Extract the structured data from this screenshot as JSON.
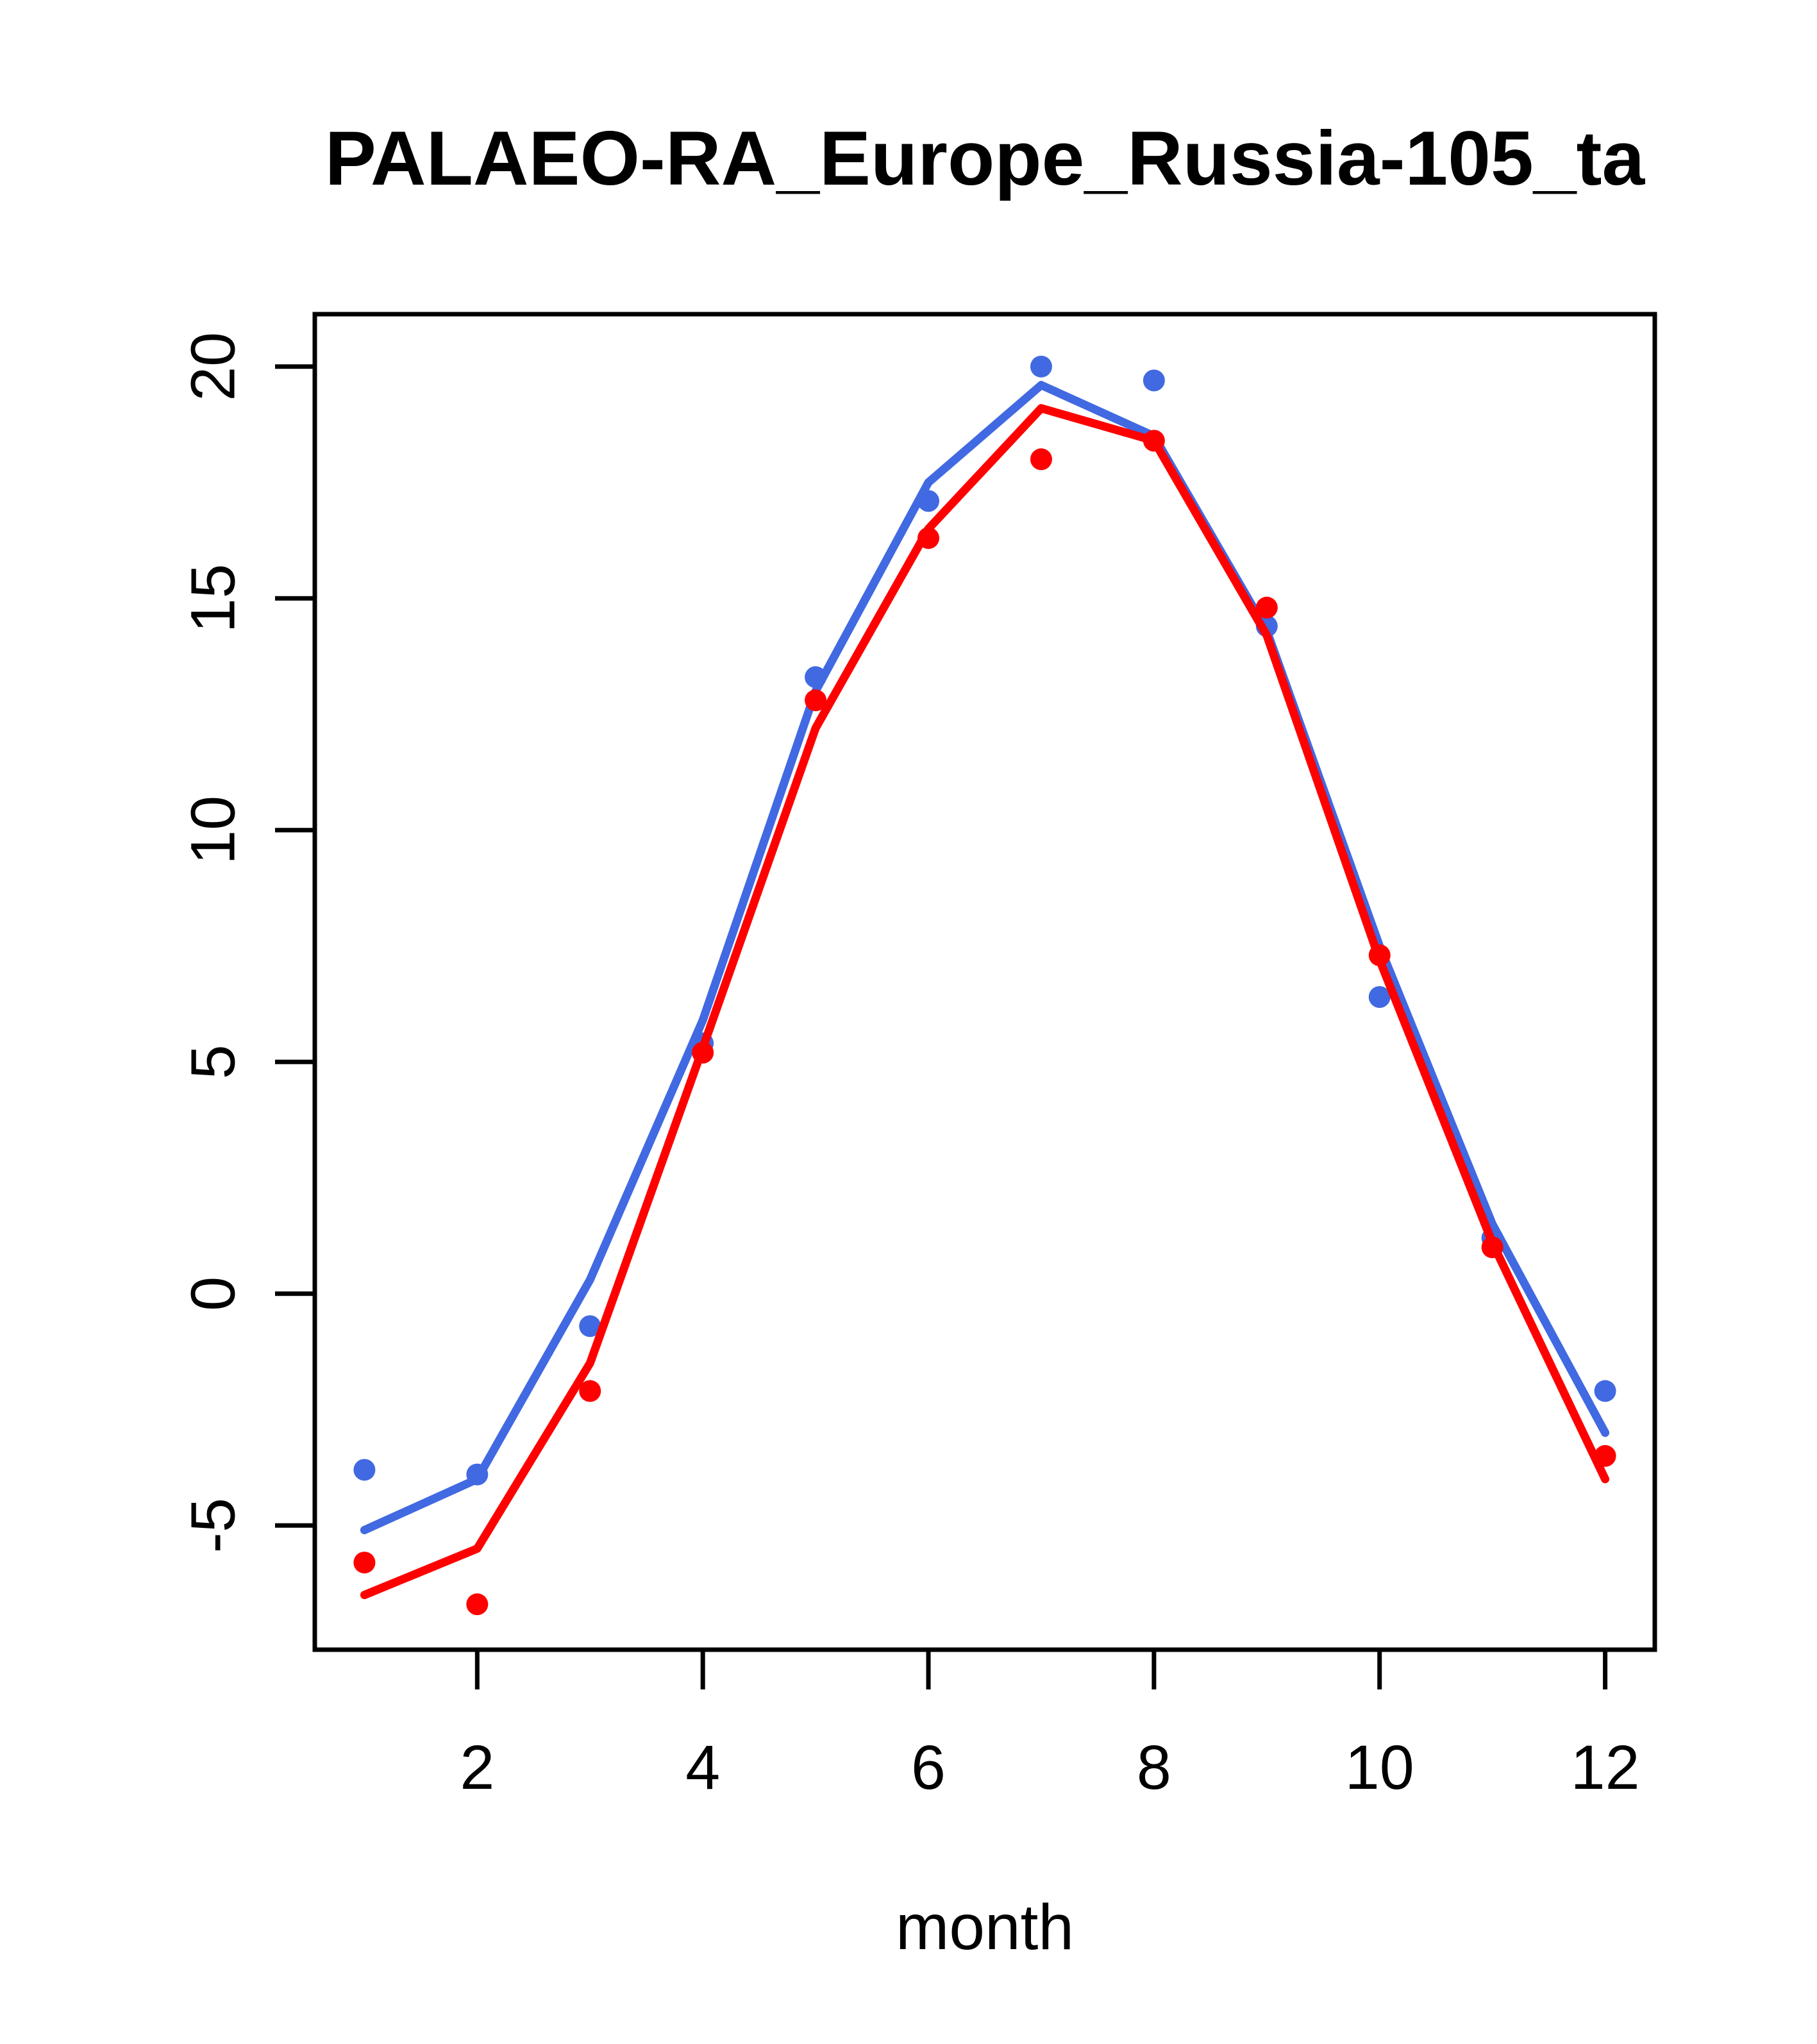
{
  "figure": {
    "background_color": "#FFFFFF",
    "foreground_color": "#000000"
  },
  "chart_data": {
    "type": "line-scatter",
    "title": "PALAEO-RA_Europe_Russia-105_ta",
    "xlabel": "month",
    "ylabel": "",
    "x": [
      1,
      2,
      3,
      4,
      5,
      6,
      7,
      8,
      9,
      10,
      11,
      12
    ],
    "xlim": [
      0.56,
      12.44
    ],
    "ylim": [
      -7.68,
      21.13
    ],
    "x_ticks": [
      2,
      4,
      6,
      8,
      10,
      12
    ],
    "y_ticks": [
      -5,
      0,
      5,
      10,
      15,
      20
    ],
    "grid": false,
    "legend": "none",
    "marker_style": "filled-circle",
    "series": [
      {
        "name": "blue-series",
        "color": "#4169E1",
        "points": [
          -3.8,
          -3.9,
          -0.7,
          5.4,
          13.3,
          17.1,
          20.0,
          19.7,
          14.4,
          6.4,
          1.2,
          -2.1
        ],
        "line": [
          -5.1,
          -4.0,
          0.3,
          5.9,
          13.0,
          17.5,
          19.6,
          18.5,
          14.3,
          7.5,
          1.5,
          -3.0
        ]
      },
      {
        "name": "red-series",
        "color": "#FF0000",
        "points": [
          -5.8,
          -6.7,
          -2.1,
          5.2,
          12.8,
          16.3,
          18.0,
          18.4,
          14.8,
          7.3,
          1.0,
          -3.5
        ],
        "line": [
          -6.5,
          -5.5,
          -1.5,
          5.3,
          12.2,
          16.5,
          19.1,
          18.4,
          14.2,
          7.2,
          1.1,
          -4.0
        ]
      }
    ]
  }
}
